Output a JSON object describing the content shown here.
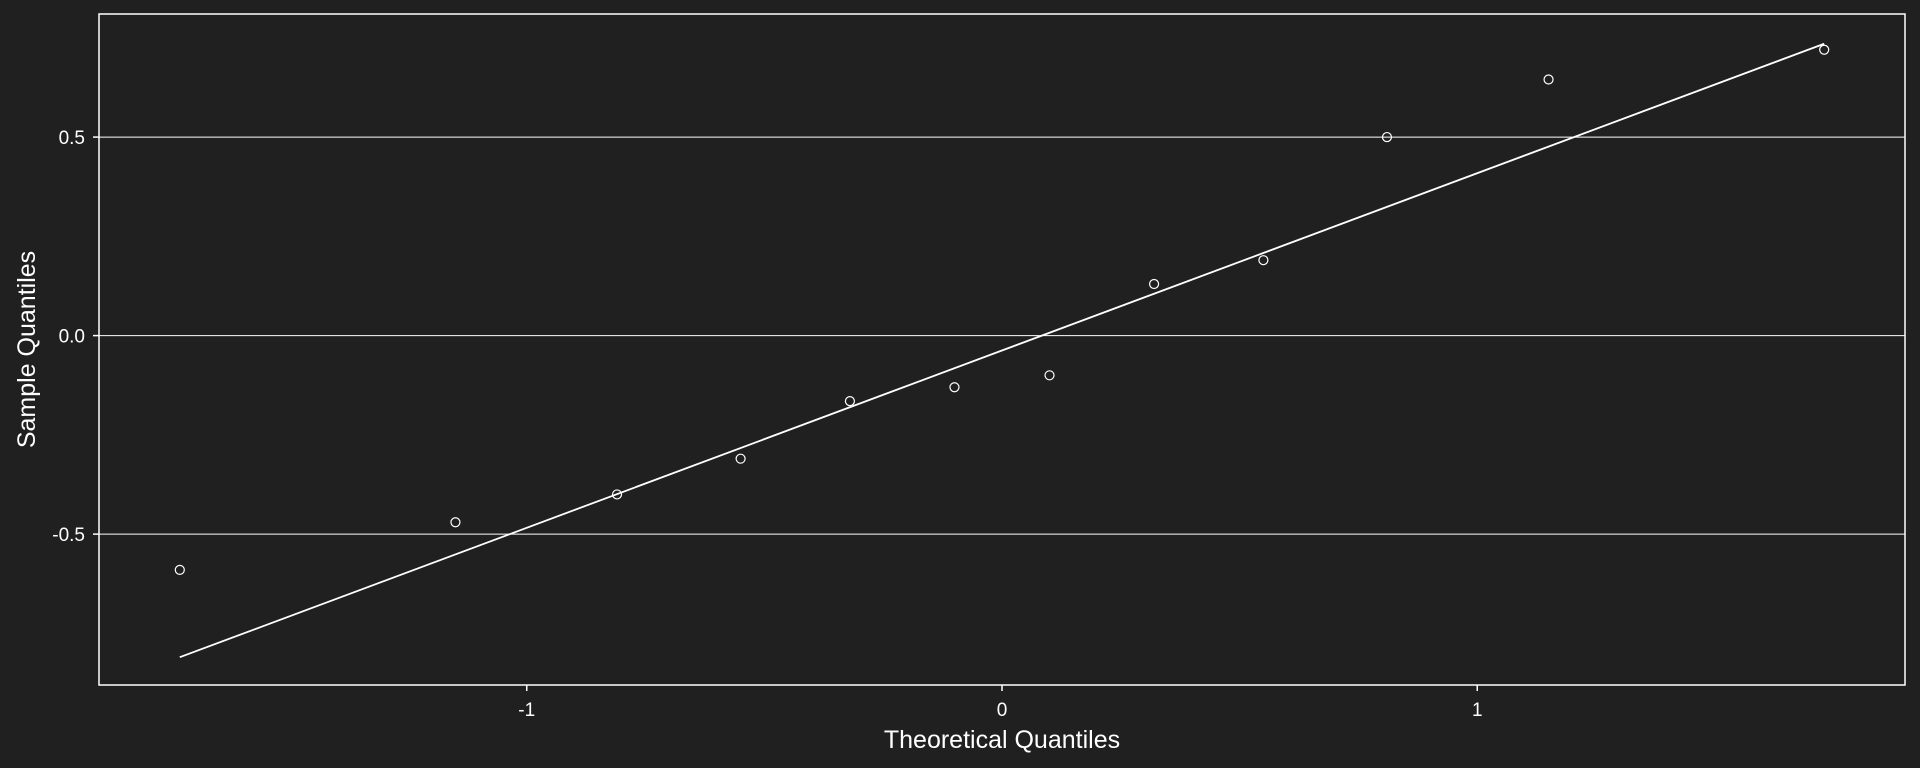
{
  "chart_data": {
    "type": "scatter",
    "title": "",
    "xlabel": "Theoretical Quantiles",
    "ylabel": "Sample Quantiles",
    "xlim": [
      -1.9,
      1.9
    ],
    "ylim": [
      -0.88,
      0.81
    ],
    "x_ticks": [
      -1,
      0,
      1
    ],
    "x_tick_labels": [
      "-1",
      "0",
      "1"
    ],
    "y_ticks": [
      -0.5,
      0.0,
      0.5
    ],
    "y_tick_labels": [
      "-0.5",
      "0.0",
      "0.5"
    ],
    "grid": "horizontal",
    "legend": "none",
    "colors": {
      "background": "#202020",
      "foreground": "#ffffff"
    },
    "series": [
      {
        "values": [
          {
            "x": -1.73,
            "y": -0.59
          },
          {
            "x": -1.15,
            "y": -0.47
          },
          {
            "x": -0.81,
            "y": -0.4
          },
          {
            "x": -0.55,
            "y": -0.31
          },
          {
            "x": -0.32,
            "y": -0.165
          },
          {
            "x": -0.1,
            "y": -0.13
          },
          {
            "x": 0.1,
            "y": -0.1
          },
          {
            "x": 0.32,
            "y": 0.13
          },
          {
            "x": 0.55,
            "y": 0.19
          },
          {
            "x": 0.81,
            "y": 0.5
          },
          {
            "x": 1.15,
            "y": 0.645
          },
          {
            "x": 1.73,
            "y": 0.72
          }
        ]
      }
    ],
    "reference_line": {
      "from": {
        "x": -1.73,
        "y": -0.81
      },
      "to": {
        "x": 1.73,
        "y": 0.735
      }
    }
  }
}
